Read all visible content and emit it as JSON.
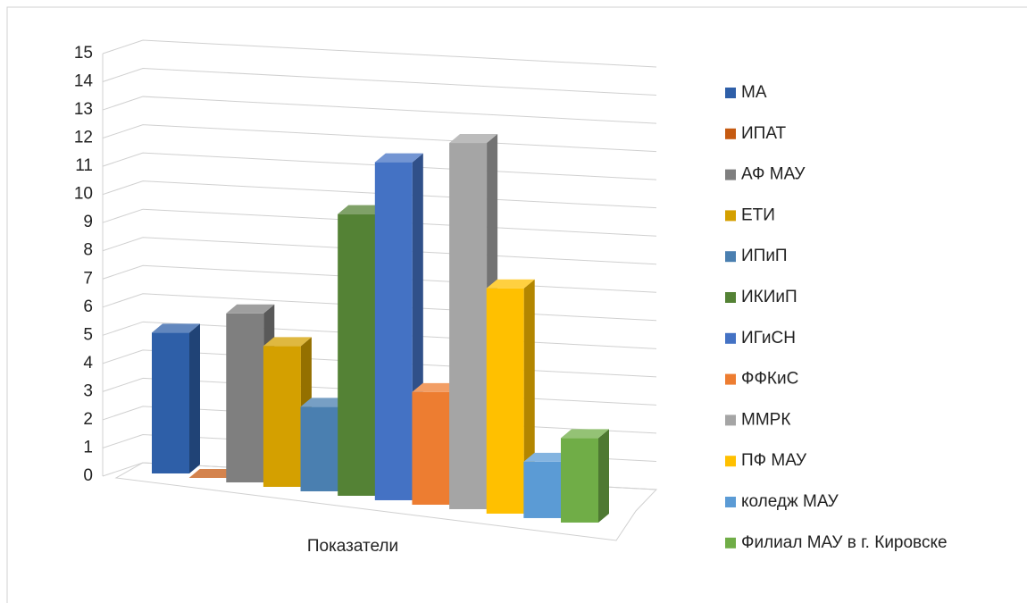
{
  "chart_data": {
    "type": "bar3d",
    "categories": [
      "Показатели"
    ],
    "series": [
      {
        "name": "МА",
        "color": "#2e5fa8",
        "values": [
          5
        ]
      },
      {
        "name": "ИПАТ",
        "color": "#c55a11",
        "values": [
          0
        ]
      },
      {
        "name": "АФ МАУ",
        "color": "#7f7f7f",
        "values": [
          6
        ]
      },
      {
        "name": "ЕТИ",
        "color": "#d4a000",
        "values": [
          5
        ]
      },
      {
        "name": "ИПиП",
        "color": "#4a7fb0",
        "values": [
          3
        ]
      },
      {
        "name": "ИКИиП",
        "color": "#548235",
        "values": [
          10
        ]
      },
      {
        "name": "ИГиСН",
        "color": "#4472c4",
        "values": [
          12
        ]
      },
      {
        "name": "ФФКиС",
        "color": "#ed7d31",
        "values": [
          4
        ]
      },
      {
        "name": "ММРК",
        "color": "#a5a5a5",
        "values": [
          13
        ]
      },
      {
        "name": "ПФ МАУ",
        "color": "#ffc000",
        "values": [
          8
        ]
      },
      {
        "name": "коледж МАУ",
        "color": "#5b9bd5",
        "values": [
          2
        ]
      },
      {
        "name": "Филиал МАУ в г. Кировске",
        "color": "#70ad47",
        "values": [
          3
        ]
      }
    ],
    "ylim": [
      0,
      15
    ],
    "yticks": [
      0,
      1,
      2,
      3,
      4,
      5,
      6,
      7,
      8,
      9,
      10,
      11,
      12,
      13,
      14,
      15
    ],
    "grid": true,
    "legend": "right"
  }
}
